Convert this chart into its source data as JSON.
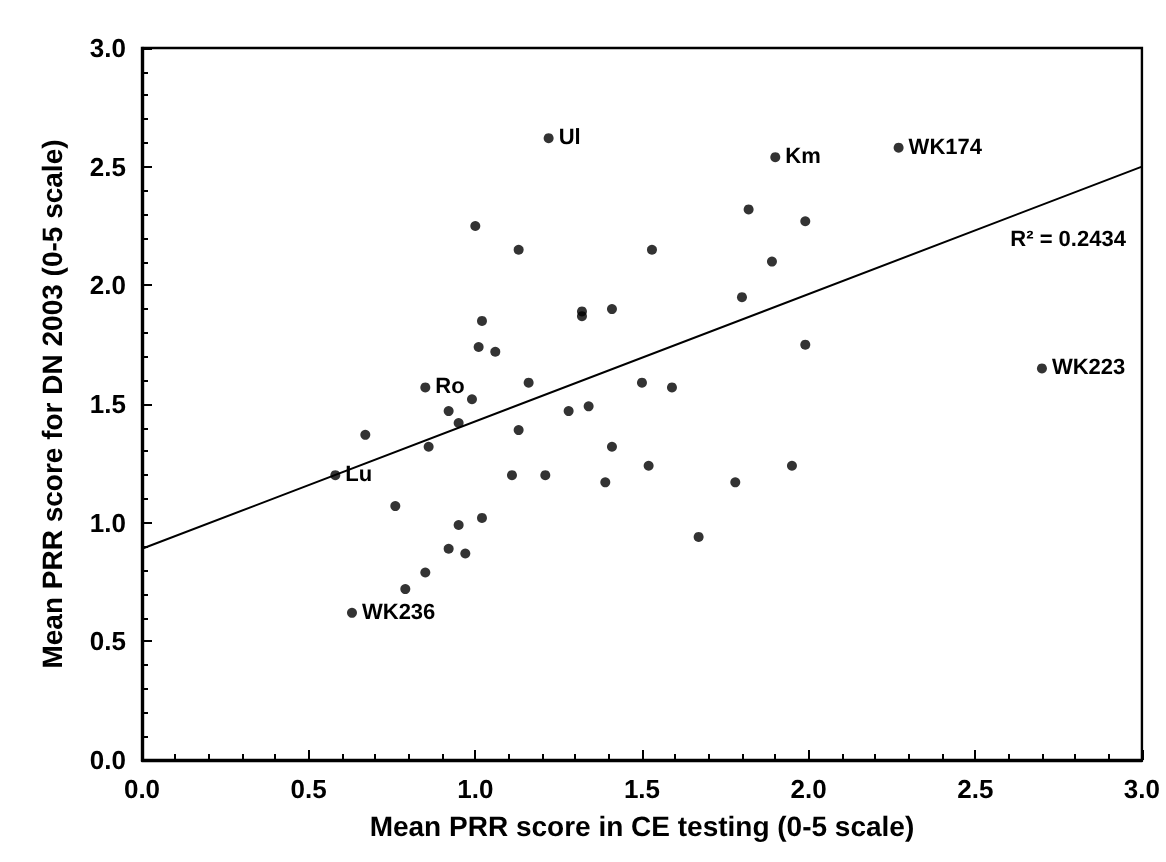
{
  "chart_data": {
    "type": "scatter",
    "xlabel": "Mean PRR score in CE testing (0-5 scale)",
    "ylabel": "Mean PRR score for DN 2003 (0-5 scale)",
    "xlim": [
      0,
      3
    ],
    "ylim": [
      0,
      3
    ],
    "xticks": [
      {
        "value": 0,
        "label": "0.0"
      },
      0.5,
      {
        "value": 1,
        "label": "1.0"
      },
      1.5,
      {
        "value": 2,
        "label": "2.0"
      },
      2.5,
      {
        "value": 3,
        "label": "3.0"
      }
    ],
    "yticks": [
      {
        "value": 0,
        "label": "0.0"
      },
      0.5,
      {
        "value": 1,
        "label": "1.0"
      },
      1.5,
      {
        "value": 2,
        "label": "2.0"
      },
      2.5,
      {
        "value": 3,
        "label": "3.0"
      }
    ],
    "grid": false,
    "series": [
      {
        "type": "scatter",
        "color": "#000000",
        "marker": "circle",
        "x": [
          1.22,
          1.0,
          1.13,
          1.32,
          1.32,
          1.41,
          1.02,
          1.01,
          1.06,
          0.85,
          1.16,
          0.99,
          0.92,
          0.95,
          0.67,
          0.86,
          0.58,
          0.76,
          0.95,
          1.02,
          0.92,
          0.97,
          0.85,
          0.79,
          0.63,
          1.13,
          1.11,
          1.21,
          1.28,
          1.34,
          1.41,
          1.39,
          1.5,
          1.59,
          1.52,
          1.78,
          1.95,
          1.67,
          2.7,
          1.9,
          2.27,
          1.82,
          1.99,
          1.53,
          1.89,
          1.8,
          1.99
        ],
        "values": [
          2.62,
          2.25,
          2.15,
          1.89,
          1.87,
          1.9,
          1.85,
          1.74,
          1.72,
          1.57,
          1.59,
          1.52,
          1.47,
          1.42,
          1.37,
          1.32,
          1.2,
          1.07,
          0.99,
          1.02,
          0.89,
          0.87,
          0.79,
          0.72,
          0.62,
          1.39,
          1.2,
          1.2,
          1.47,
          1.49,
          1.32,
          1.17,
          1.59,
          1.57,
          1.24,
          1.17,
          1.24,
          0.94,
          1.65,
          2.54,
          2.58,
          2.32,
          2.27,
          2.15,
          2.1,
          1.95,
          1.75
        ]
      },
      {
        "type": "line",
        "color": "#000000",
        "x": [
          0,
          3
        ],
        "values": [
          0.89,
          2.5
        ],
        "marker": "none"
      }
    ],
    "annotations": [
      {
        "text": "Ul",
        "x": 1.22,
        "y": 2.62
      },
      {
        "text": "Km",
        "x": 1.9,
        "y": 2.54
      },
      {
        "text": "WK174",
        "x": 2.27,
        "y": 2.58
      },
      {
        "text": "WK223",
        "x": 2.7,
        "y": 1.65
      },
      {
        "text": "Ro",
        "x": 0.85,
        "y": 1.57
      },
      {
        "text": "Lu",
        "x": 0.58,
        "y": 1.2
      },
      {
        "text": "WK236",
        "x": 0.63,
        "y": 0.62
      },
      "R² = 0.2434"
    ]
  }
}
